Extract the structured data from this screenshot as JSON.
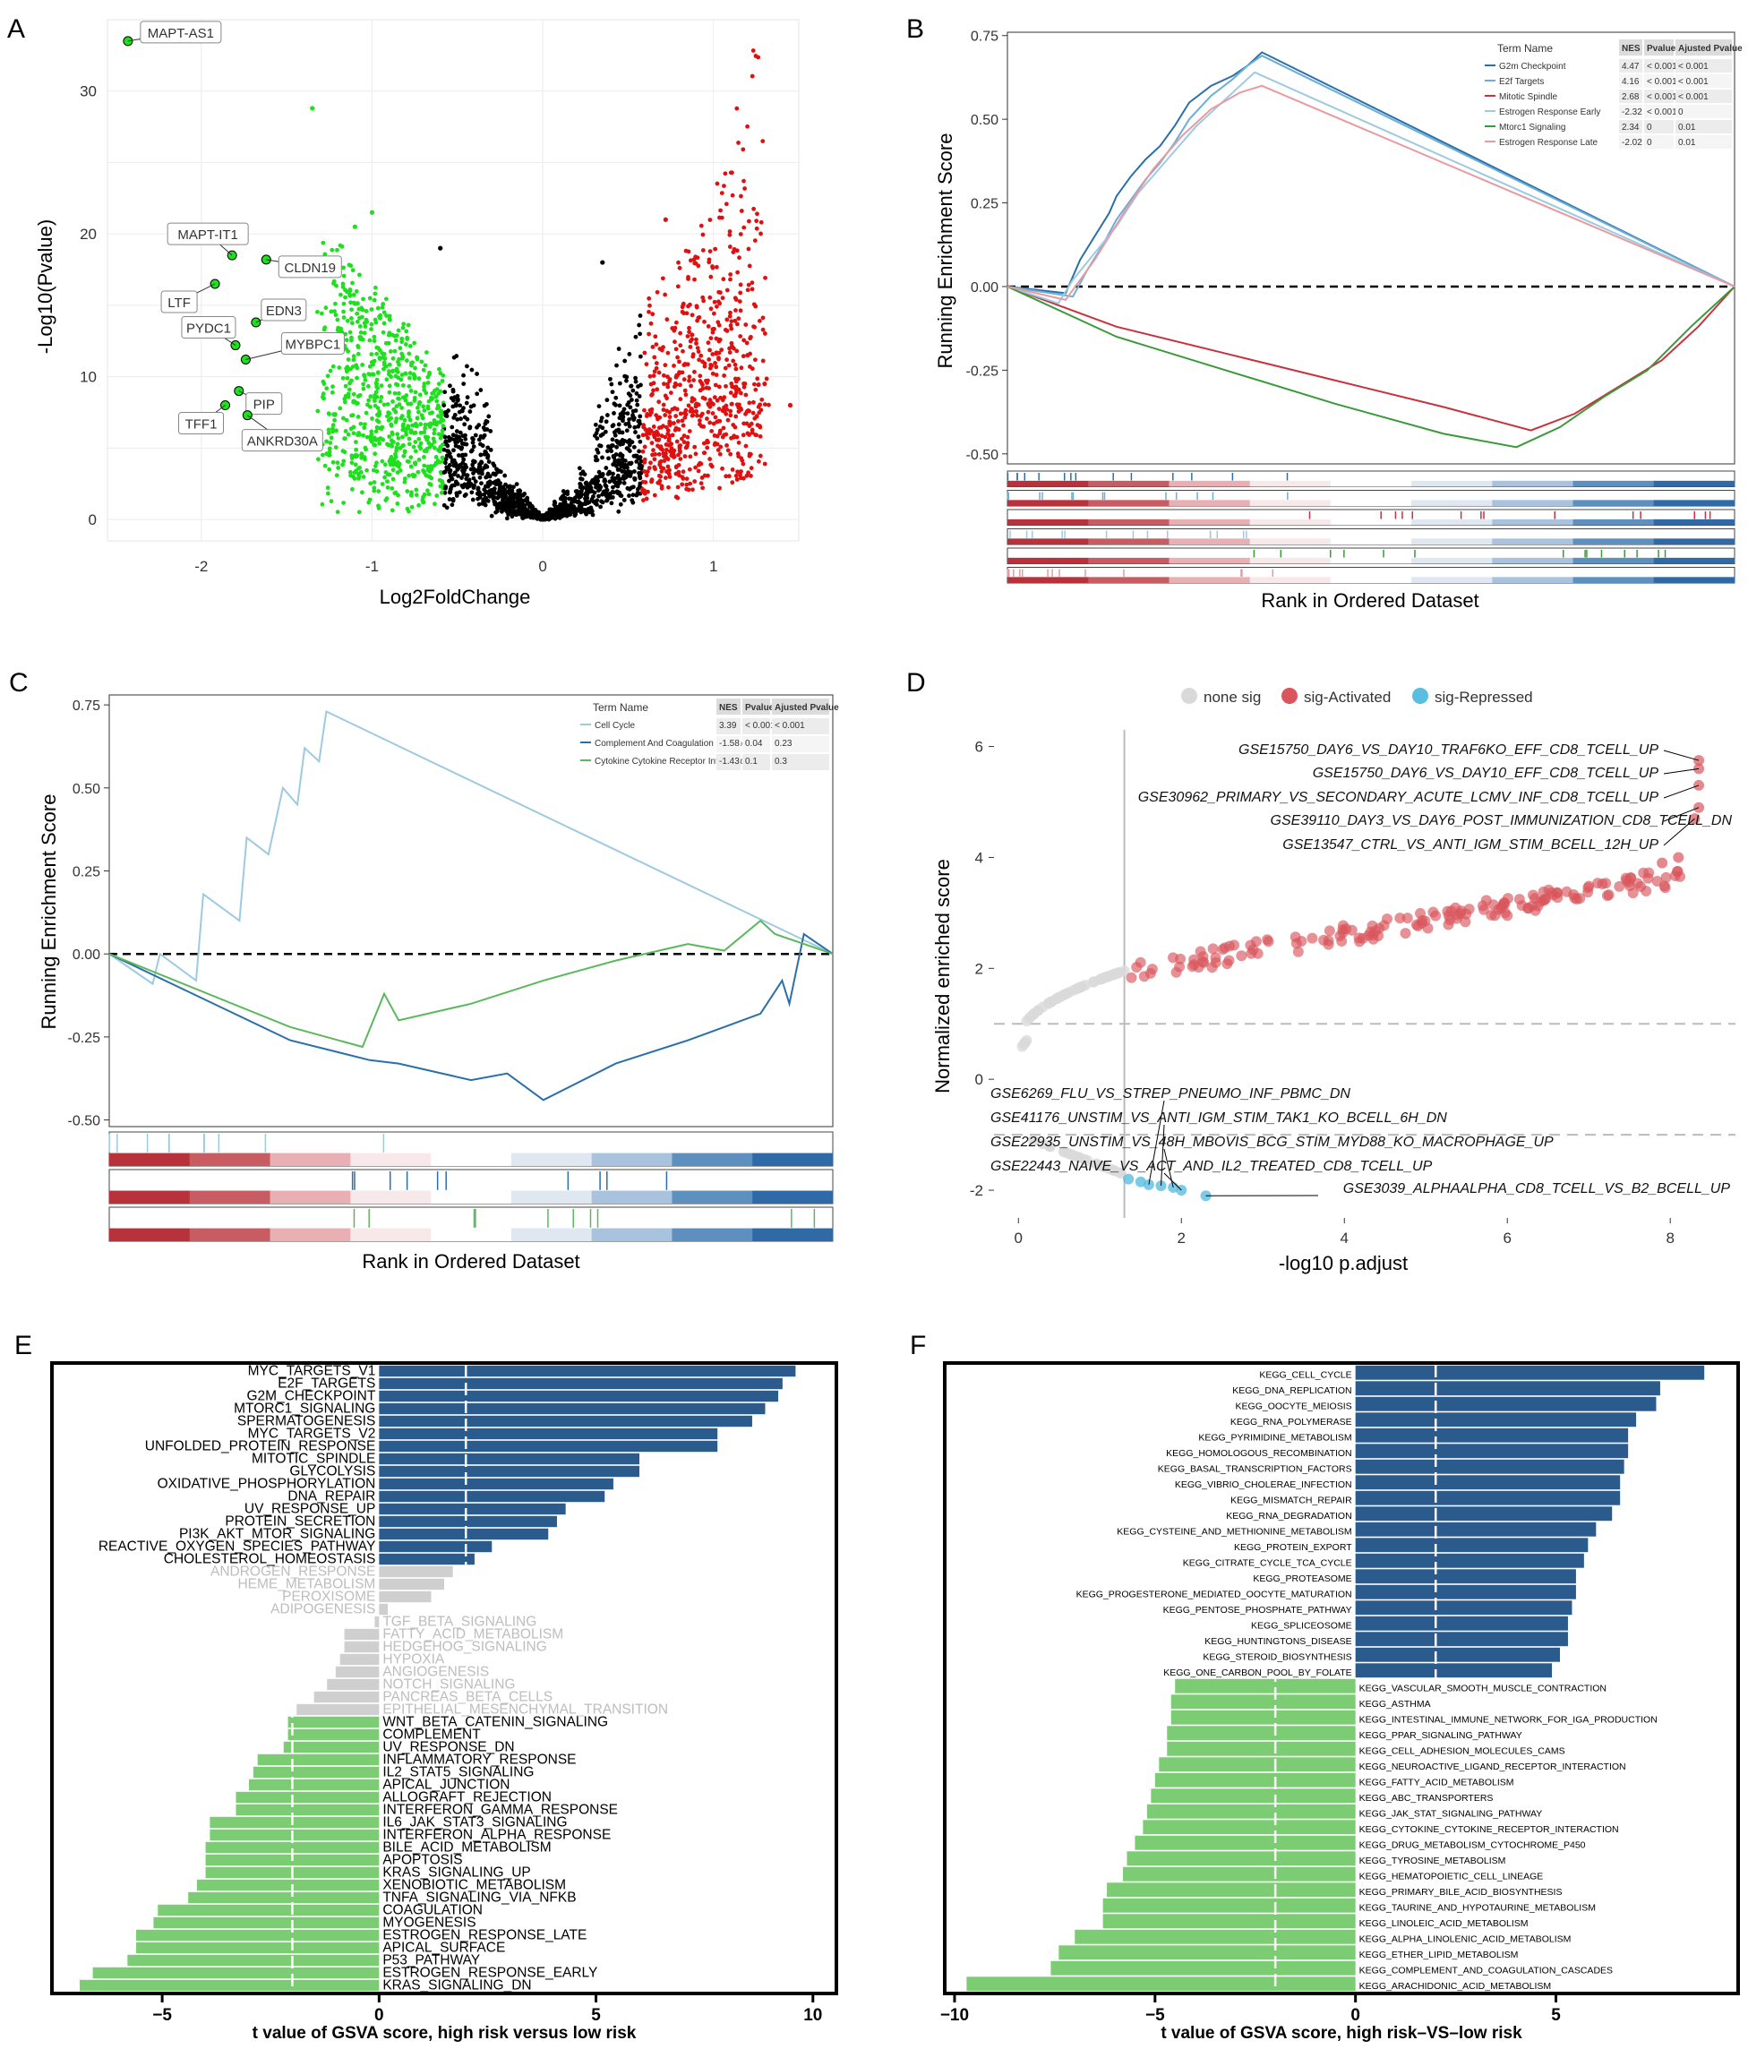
{
  "panels": {
    "A": {
      "letter": "A",
      "chart_data": {
        "type": "scatter",
        "title": "",
        "xlabel": "Log2FoldChange",
        "ylabel": "-Log10(Pvalue)",
        "xlim": [
          -2.55,
          1.5
        ],
        "ylim": [
          -1.5,
          35
        ],
        "xticks": [
          -2,
          -1,
          0,
          1
        ],
        "yticks": [
          0,
          10,
          20,
          30
        ],
        "labeled_points": [
          {
            "label": "MAPT-AS1",
            "x": -2.43,
            "y": 33.5
          },
          {
            "label": "MAPT-IT1",
            "x": -1.82,
            "y": 18.5
          },
          {
            "label": "CLDN19",
            "x": -1.62,
            "y": 18.2
          },
          {
            "label": "LTF",
            "x": -1.92,
            "y": 16.5
          },
          {
            "label": "EDN3",
            "x": -1.68,
            "y": 13.8
          },
          {
            "label": "PYDC1",
            "x": -1.8,
            "y": 12.2
          },
          {
            "label": "MYBPC1",
            "x": -1.74,
            "y": 11.2
          },
          {
            "label": "PIP",
            "x": -1.78,
            "y": 9.0
          },
          {
            "label": "TFF1",
            "x": -1.86,
            "y": 8.0
          },
          {
            "label": "ANKRD30A",
            "x": -1.73,
            "y": 7.3
          }
        ]
      }
    },
    "B": {
      "letter": "B",
      "chart_data": {
        "type": "line",
        "xlabel": "Rank in Ordered Dataset",
        "ylabel": "Running Enrichment Score",
        "ylim": [
          -0.53,
          0.76
        ],
        "yticks": [
          -0.5,
          -0.25,
          0.0,
          0.25,
          0.5,
          0.75
        ],
        "ytick_labels": [
          "-0.50",
          "-0.25",
          "0.00",
          "0.25",
          "0.50",
          "0.75"
        ],
        "table_headers": [
          "Term Name",
          "NES",
          "Pvalue",
          "Ajusted Pvalue"
        ],
        "series": [
          {
            "name": "G2m Checkpoint",
            "color": "#2b6fa8",
            "nes": "4.47",
            "pvalue": "< 0.001",
            "adj": "< 0.001",
            "x": [
              0,
              8,
              10,
              12,
              14,
              15,
              17,
              19,
              21,
              23,
              25,
              28,
              31,
              33,
              35,
              100
            ],
            "y": [
              0,
              -0.02,
              0.08,
              0.15,
              0.22,
              0.27,
              0.33,
              0.38,
              0.42,
              0.48,
              0.55,
              0.6,
              0.63,
              0.66,
              0.7,
              0
            ]
          },
          {
            "name": "E2f Targets",
            "color": "#6baed6",
            "nes": "4.16",
            "pvalue": "< 0.001",
            "adj": "< 0.001",
            "x": [
              0,
              9,
              11,
              13,
              15,
              17,
              19,
              21,
              23,
              25,
              28,
              31,
              33,
              35,
              100
            ],
            "y": [
              0,
              -0.03,
              0.05,
              0.12,
              0.2,
              0.26,
              0.32,
              0.37,
              0.43,
              0.5,
              0.57,
              0.62,
              0.66,
              0.69,
              0
            ]
          },
          {
            "name": "Mitotic Spindle",
            "color": "#c8323c",
            "nes": "2.68",
            "pvalue": "< 0.001",
            "adj": "< 0.001",
            "x": [
              0,
              15,
              30,
              45,
              60,
              72,
              78,
              84,
              90,
              95,
              100
            ],
            "y": [
              0,
              -0.12,
              -0.2,
              -0.28,
              -0.36,
              -0.43,
              -0.38,
              -0.3,
              -0.22,
              -0.12,
              0
            ]
          },
          {
            "name": "Estrogen Response Early",
            "color": "#9ecae1",
            "nes": "-2.32",
            "pvalue": "< 0.001",
            "adj": "0",
            "x": [
              0,
              7,
              9,
              12,
              15,
              18,
              22,
              26,
              30,
              34,
              100
            ],
            "y": [
              0,
              -0.05,
              0.02,
              0.1,
              0.18,
              0.28,
              0.38,
              0.48,
              0.56,
              0.64,
              0
            ]
          },
          {
            "name": "Mtorc1 Signaling",
            "color": "#3a9a3a",
            "nes": "2.34",
            "pvalue": "0",
            "adj": "0.01",
            "x": [
              0,
              15,
              30,
              45,
              60,
              70,
              76,
              82,
              88,
              94,
              100
            ],
            "y": [
              0,
              -0.15,
              -0.25,
              -0.35,
              -0.44,
              -0.48,
              -0.42,
              -0.33,
              -0.25,
              -0.12,
              0
            ]
          },
          {
            "name": "Estrogen Response Late",
            "color": "#e89aa0",
            "nes": "-2.02",
            "pvalue": "0",
            "adj": "0.01",
            "x": [
              0,
              8,
              12,
              16,
              20,
              24,
              28,
              32,
              35,
              100
            ],
            "y": [
              0,
              -0.04,
              0.08,
              0.22,
              0.35,
              0.45,
              0.53,
              0.58,
              0.6,
              0
            ]
          }
        ]
      }
    },
    "C": {
      "letter": "C",
      "chart_data": {
        "type": "line",
        "xlabel": "Rank in Ordered Dataset",
        "ylabel": "Running Enrichment Score",
        "ylim": [
          -0.52,
          0.78
        ],
        "yticks": [
          -0.5,
          -0.25,
          0.0,
          0.25,
          0.5,
          0.75
        ],
        "ytick_labels": [
          "-0.50",
          "-0.25",
          "0.00",
          "0.25",
          "0.50",
          "0.75"
        ],
        "table_headers": [
          "Term Name",
          "NES",
          "Pvalue",
          "Ajusted Pvalue"
        ],
        "series": [
          {
            "name": "Cell Cycle",
            "color": "#9ecae1",
            "nes": "3.39",
            "pvalue": "< 0.001",
            "adj": "< 0.001",
            "x": [
              0,
              6,
              7,
              12,
              13,
              18,
              19,
              22,
              24,
              26,
              27,
              29,
              30,
              100
            ],
            "y": [
              0,
              -0.09,
              0.0,
              -0.08,
              0.18,
              0.1,
              0.35,
              0.3,
              0.5,
              0.45,
              0.62,
              0.58,
              0.73,
              0
            ]
          },
          {
            "name": "Complement And Coagulation Cascades",
            "color": "#2b6fa8",
            "nes": "-1.58",
            "pvalue": "0.04",
            "adj": "0.23",
            "x": [
              0,
              25,
              36,
              40,
              50,
              55,
              60,
              70,
              80,
              85,
              90,
              93,
              94,
              96,
              100
            ],
            "y": [
              0,
              -0.26,
              -0.32,
              -0.33,
              -0.38,
              -0.36,
              -0.44,
              -0.33,
              -0.26,
              -0.22,
              -0.18,
              -0.08,
              -0.15,
              0.06,
              0
            ]
          },
          {
            "name": "Cytokine Cytokine Receptor Interaction",
            "color": "#5cb85c",
            "nes": "-1.43",
            "pvalue": "0.1",
            "adj": "0.3",
            "x": [
              0,
              25,
              35,
              38,
              40,
              50,
              60,
              70,
              80,
              85,
              90,
              92,
              100
            ],
            "y": [
              0,
              -0.22,
              -0.28,
              -0.12,
              -0.2,
              -0.15,
              -0.08,
              -0.02,
              0.03,
              0.01,
              0.1,
              0.06,
              0
            ]
          }
        ]
      }
    },
    "D": {
      "letter": "D",
      "chart_data": {
        "type": "scatter",
        "xlabel": "-log10 p.adjust",
        "ylabel": "Normalized enriched score",
        "xlim": [
          -0.3,
          8.8
        ],
        "ylim": [
          -2.5,
          6.3
        ],
        "xticks": [
          0,
          2,
          4,
          6,
          8
        ],
        "yticks": [
          -2,
          0,
          2,
          4,
          6
        ],
        "legend": [
          "none sig",
          "sig-Activated",
          "sig-Repressed"
        ],
        "legend_colors": [
          "#d9d9d9",
          "#d9565c",
          "#5bbde0"
        ],
        "vline_x": 1.3,
        "hlines_y": [
          1,
          -1
        ],
        "labels_top": [
          "GSE15750_DAY6_VS_DAY10_TRAF6KO_EFF_CD8_TCELL_UP",
          "GSE15750_DAY6_VS_DAY10_EFF_CD8_TCELL_UP",
          "GSE30962_PRIMARY_VS_SECONDARY_ACUTE_LCMV_INF_CD8_TCELL_UP",
          "GSE39110_DAY3_VS_DAY6_POST_IMMUNIZATION_CD8_TCELL_DN",
          "GSE13547_CTRL_VS_ANTI_IGM_STIM_BCELL_12H_UP"
        ],
        "labels_bottom": [
          "GSE6269_FLU_VS_STREP_PNEUMO_INF_PBMC_DN",
          "GSE41176_UNSTIM_VS_ANTI_IGM_STIM_TAK1_KO_BCELL_6H_DN",
          "GSE22935_UNSTIM_VS_48H_MBOVIS_BCG_STIM_MYD88_KO_MACROPHAGE_UP",
          "GSE22443_NAIVE_VS_ACT_AND_IL2_TREATED_CD8_TCELL_UP",
          "GSE3039_ALPHAALPHA_CD8_TCELL_VS_B2_BCELL_UP"
        ]
      }
    },
    "E": {
      "letter": "E",
      "chart_data": {
        "type": "bar",
        "orientation": "horizontal",
        "xlabel": "t value of GSVA score, high risk  versus low risk",
        "xlim": [
          -7.5,
          10.5
        ],
        "xticks": [
          -5,
          0,
          5,
          10
        ],
        "threshold": 2,
        "colors": {
          "pos": "#2b5b8c",
          "neg": "#7ccc74",
          "ns": "#cfcfcf",
          "ns_text": "#bdbdbd"
        },
        "categories": [
          "MYC_TARGETS_V1",
          "E2F_TARGETS",
          "G2M_CHECKPOINT",
          "MTORC1_SIGNALING",
          "SPERMATOGENESIS",
          "MYC_TARGETS_V2",
          "UNFOLDED_PROTEIN_RESPONSE",
          "MITOTIC_SPINDLE",
          "GLYCOLYSIS",
          "OXIDATIVE_PHOSPHORYLATION",
          "DNA_REPAIR",
          "UV_RESPONSE_UP",
          "PROTEIN_SECRETION",
          "PI3K_AKT_MTOR_SIGNALING",
          "REACTIVE_OXYGEN_SPECIES_PATHWAY",
          "CHOLESTEROL_HOMEOSTASIS",
          "ANDROGEN_RESPONSE",
          "HEME_METABOLISM",
          "PEROXISOME",
          "ADIPOGENESIS",
          "TGF_BETA_SIGNALING",
          "FATTY_ACID_METABOLISM",
          "HEDGEHOG_SIGNALING",
          "HYPOXIA",
          "ANGIOGENESIS",
          "NOTCH_SIGNALING",
          "PANCREAS_BETA_CELLS",
          "EPITHELIAL_MESENCHYMAL_TRANSITION",
          "WNT_BETA_CATENIN_SIGNALING",
          "COMPLEMENT",
          "UV_RESPONSE_DN",
          "INFLAMMATORY_RESPONSE",
          "IL2_STAT5_SIGNALING",
          "APICAL_JUNCTION",
          "ALLOGRAFT_REJECTION",
          "INTERFERON_GAMMA_RESPONSE",
          "IL6_JAK_STAT3_SIGNALING",
          "INTERFERON_ALPHA_RESPONSE",
          "BILE_ACID_METABOLISM",
          "APOPTOSIS",
          "KRAS_SIGNALING_UP",
          "XENOBIOTIC_METABOLISM",
          "TNFA_SIGNALING_VIA_NFKB",
          "COAGULATION",
          "MYOGENESIS",
          "ESTROGEN_RESPONSE_LATE",
          "APICAL_SURFACE",
          "P53_PATHWAY",
          "ESTROGEN_RESPONSE_EARLY",
          "KRAS_SIGNALING_DN"
        ],
        "values": [
          9.6,
          9.3,
          9.2,
          8.9,
          8.6,
          7.8,
          7.8,
          6.0,
          6.0,
          5.4,
          5.2,
          4.3,
          4.1,
          3.9,
          2.6,
          2.2,
          1.7,
          1.5,
          1.2,
          0.2,
          -0.1,
          -0.8,
          -0.8,
          -0.9,
          -1.0,
          -1.2,
          -1.5,
          -1.9,
          -2.1,
          -2.1,
          -2.2,
          -2.8,
          -2.9,
          -3.0,
          -3.3,
          -3.3,
          -3.9,
          -3.9,
          -4.0,
          -4.0,
          -4.0,
          -4.2,
          -4.4,
          -5.1,
          -5.2,
          -5.6,
          -5.6,
          -5.8,
          -6.6,
          -6.9
        ]
      }
    },
    "F": {
      "letter": "F",
      "chart_data": {
        "type": "bar",
        "orientation": "horizontal",
        "xlabel": "t value of GSVA score, high risk–VS–low risk",
        "xlim": [
          -10.2,
          9.5
        ],
        "xticks": [
          -10,
          -5,
          0,
          5
        ],
        "threshold": 2,
        "colors": {
          "pos": "#2b5b8c",
          "neg": "#7ccc74"
        },
        "categories": [
          "KEGG_CELL_CYCLE",
          "KEGG_DNA_REPLICATION",
          "KEGG_OOCYTE_MEIOSIS",
          "KEGG_RNA_POLYMERASE",
          "KEGG_PYRIMIDINE_METABOLISM",
          "KEGG_HOMOLOGOUS_RECOMBINATION",
          "KEGG_BASAL_TRANSCRIPTION_FACTORS",
          "KEGG_VIBRIO_CHOLERAE_INFECTION",
          "KEGG_MISMATCH_REPAIR",
          "KEGG_RNA_DEGRADATION",
          "KEGG_CYSTEINE_AND_METHIONINE_METABOLISM",
          "KEGG_PROTEIN_EXPORT",
          "KEGG_CITRATE_CYCLE_TCA_CYCLE",
          "KEGG_PROTEASOME",
          "KEGG_PROGESTERONE_MEDIATED_OOCYTE_MATURATION",
          "KEGG_PENTOSE_PHOSPHATE_PATHWAY",
          "KEGG_SPLICEOSOME",
          "KEGG_HUNTINGTONS_DISEASE",
          "KEGG_STEROID_BIOSYNTHESIS",
          "KEGG_ONE_CARBON_POOL_BY_FOLATE",
          "KEGG_VASCULAR_SMOOTH_MUSCLE_CONTRACTION",
          "KEGG_ASTHMA",
          "KEGG_INTESTINAL_IMMUNE_NETWORK_FOR_IGA_PRODUCTION",
          "KEGG_PPAR_SIGNALING_PATHWAY",
          "KEGG_CELL_ADHESION_MOLECULES_CAMS",
          "KEGG_NEUROACTIVE_LIGAND_RECEPTOR_INTERACTION",
          "KEGG_FATTY_ACID_METABOLISM",
          "KEGG_ABC_TRANSPORTERS",
          "KEGG_JAK_STAT_SIGNALING_PATHWAY",
          "KEGG_CYTOKINE_CYTOKINE_RECEPTOR_INTERACTION",
          "KEGG_DRUG_METABOLISM_CYTOCHROME_P450",
          "KEGG_TYROSINE_METABOLISM",
          "KEGG_HEMATOPOIETIC_CELL_LINEAGE",
          "KEGG_PRIMARY_BILE_ACID_BIOSYNTHESIS",
          "KEGG_TAURINE_AND_HYPOTAURINE_METABOLISM",
          "KEGG_LINOLEIC_ACID_METABOLISM",
          "KEGG_ALPHA_LINOLENIC_ACID_METABOLISM",
          "KEGG_ETHER_LIPID_METABOLISM",
          "KEGG_COMPLEMENT_AND_COAGULATION_CASCADES",
          "KEGG_ARACHIDONIC_ACID_METABOLISM"
        ],
        "values": [
          8.7,
          7.6,
          7.5,
          7.0,
          6.8,
          6.8,
          6.7,
          6.6,
          6.6,
          6.4,
          6.0,
          5.8,
          5.7,
          5.5,
          5.5,
          5.4,
          5.3,
          5.3,
          5.1,
          4.9,
          -4.5,
          -4.6,
          -4.6,
          -4.7,
          -4.7,
          -4.9,
          -5.0,
          -5.1,
          -5.2,
          -5.3,
          -5.5,
          -5.7,
          -5.8,
          -6.2,
          -6.3,
          -6.3,
          -7.0,
          -7.4,
          -7.6,
          -9.7
        ]
      }
    }
  }
}
